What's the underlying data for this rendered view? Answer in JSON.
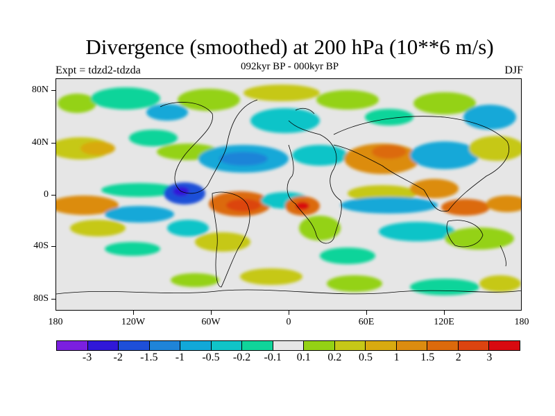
{
  "title": "Divergence (smoothed) at 200 hPa (10**6 m/s)",
  "subtitle_left": "Expt = tdzd2-tdzda",
  "subtitle_center": "092kyr BP - 000kyr BP",
  "subtitle_right": "DJF",
  "lat_labels": [
    "80N",
    "40N",
    "0",
    "40S",
    "80S"
  ],
  "lon_labels": [
    "180",
    "120W",
    "60W",
    "0",
    "60E",
    "120E",
    "180"
  ],
  "colorbar": {
    "colors": [
      "#7b1fe0",
      "#3018d8",
      "#1e4fd8",
      "#1f84d8",
      "#12a8d8",
      "#10c4c8",
      "#10d49a",
      "#e6e6e6",
      "#94d214",
      "#c6c818",
      "#d8aa10",
      "#dc8c10",
      "#dc6a0c",
      "#dc4410",
      "#d80a10"
    ],
    "labels": [
      "-3",
      "-2",
      "-1.5",
      "-1",
      "-0.5",
      "-0.2",
      "-0.1",
      "0.1",
      "0.2",
      "0.5",
      "1",
      "1.5",
      "2",
      "3"
    ]
  }
}
